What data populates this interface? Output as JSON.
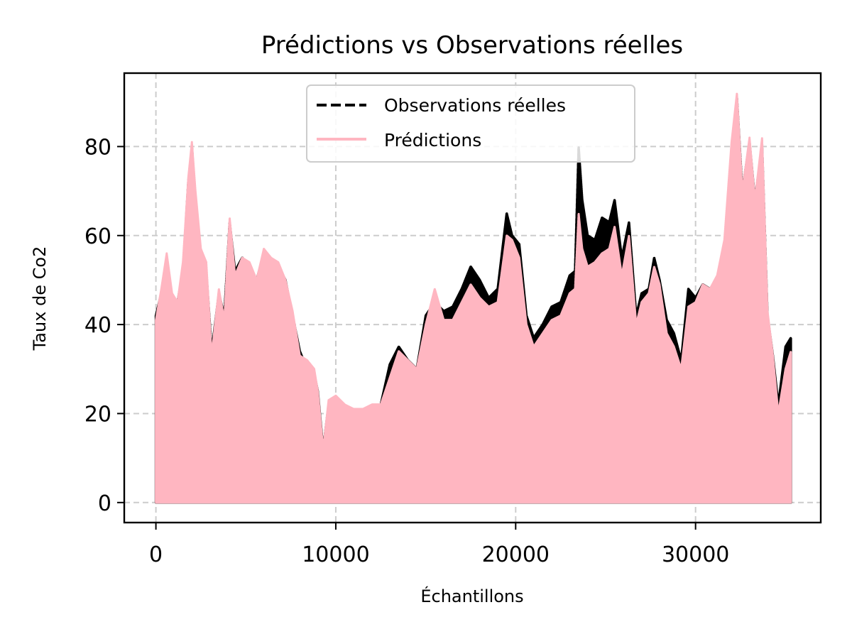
{
  "chart_data": {
    "type": "line",
    "title": "Prédictions vs Observations réelles",
    "xlabel": "Échantillons",
    "ylabel": "Taux de Co2",
    "xlim": [
      -1760,
      36960
    ],
    "ylim": [
      -4.5,
      96.5
    ],
    "xticks": [
      0,
      10000,
      20000,
      30000
    ],
    "yticks": [
      0,
      20,
      40,
      60,
      80
    ],
    "grid": true,
    "legend_position": "upper center",
    "series": [
      {
        "name": "Observations réelles",
        "color": "#000000",
        "style": "dashed",
        "envelope": [
          [
            0,
            42
          ],
          [
            300,
            47
          ],
          [
            600,
            55
          ],
          [
            900,
            46
          ],
          [
            1200,
            45
          ],
          [
            1500,
            52
          ],
          [
            1800,
            72
          ],
          [
            2000,
            80
          ],
          [
            2200,
            68
          ],
          [
            2500,
            56
          ],
          [
            2800,
            52
          ],
          [
            3100,
            34
          ],
          [
            3500,
            47
          ],
          [
            3800,
            42
          ],
          [
            4100,
            63
          ],
          [
            4400,
            52
          ],
          [
            4800,
            55
          ],
          [
            5200,
            53
          ],
          [
            5600,
            50
          ],
          [
            6000,
            56
          ],
          [
            6400,
            54
          ],
          [
            6800,
            53
          ],
          [
            7200,
            50
          ],
          [
            7600,
            42
          ],
          [
            8000,
            34
          ],
          [
            8400,
            30
          ],
          [
            8800,
            29
          ],
          [
            9000,
            25
          ],
          [
            9300,
            12
          ],
          [
            9600,
            22
          ],
          [
            10000,
            23
          ],
          [
            10500,
            21
          ],
          [
            11000,
            20
          ],
          [
            11500,
            20
          ],
          [
            12000,
            21
          ],
          [
            12500,
            22
          ],
          [
            13000,
            31
          ],
          [
            13500,
            35
          ],
          [
            14000,
            32
          ],
          [
            14500,
            30
          ],
          [
            15000,
            42
          ],
          [
            15500,
            45
          ],
          [
            16000,
            43
          ],
          [
            16500,
            44
          ],
          [
            17000,
            48
          ],
          [
            17500,
            53
          ],
          [
            18000,
            50
          ],
          [
            18500,
            46
          ],
          [
            19000,
            48
          ],
          [
            19500,
            65
          ],
          [
            19800,
            60
          ],
          [
            20200,
            58
          ],
          [
            20600,
            42
          ],
          [
            21000,
            37
          ],
          [
            21500,
            40
          ],
          [
            22000,
            44
          ],
          [
            22500,
            45
          ],
          [
            23000,
            51
          ],
          [
            23300,
            52
          ],
          [
            23500,
            80
          ],
          [
            23700,
            68
          ],
          [
            24000,
            60
          ],
          [
            24400,
            59
          ],
          [
            24800,
            64
          ],
          [
            25200,
            63
          ],
          [
            25500,
            68
          ],
          [
            25900,
            55
          ],
          [
            26300,
            63
          ],
          [
            26700,
            42
          ],
          [
            27000,
            47
          ],
          [
            27400,
            48
          ],
          [
            27700,
            55
          ],
          [
            28000,
            50
          ],
          [
            28400,
            41
          ],
          [
            28800,
            38
          ],
          [
            29200,
            32
          ],
          [
            29600,
            48
          ],
          [
            30000,
            46
          ],
          [
            30400,
            49
          ],
          [
            30800,
            48
          ],
          [
            31200,
            50
          ],
          [
            31600,
            52
          ],
          [
            32000,
            78
          ],
          [
            32300,
            91
          ],
          [
            32600,
            70
          ],
          [
            33000,
            81
          ],
          [
            33300,
            68
          ],
          [
            33700,
            80
          ],
          [
            34000,
            42
          ],
          [
            34300,
            33
          ],
          [
            34600,
            22
          ],
          [
            35000,
            35
          ],
          [
            35300,
            37
          ]
        ]
      },
      {
        "name": "Prédictions",
        "color": "#ffb6c1",
        "style": "solid",
        "envelope": [
          [
            0,
            41
          ],
          [
            300,
            48
          ],
          [
            600,
            56
          ],
          [
            900,
            47
          ],
          [
            1200,
            45
          ],
          [
            1500,
            54
          ],
          [
            1800,
            73
          ],
          [
            2000,
            81
          ],
          [
            2200,
            70
          ],
          [
            2500,
            57
          ],
          [
            2800,
            54
          ],
          [
            3100,
            33
          ],
          [
            3500,
            48
          ],
          [
            3800,
            41
          ],
          [
            4100,
            64
          ],
          [
            4400,
            51
          ],
          [
            4800,
            55
          ],
          [
            5200,
            54
          ],
          [
            5600,
            50
          ],
          [
            6000,
            57
          ],
          [
            6400,
            55
          ],
          [
            6800,
            54
          ],
          [
            7200,
            50
          ],
          [
            7600,
            43
          ],
          [
            8000,
            33
          ],
          [
            8400,
            32
          ],
          [
            8800,
            30
          ],
          [
            9000,
            25
          ],
          [
            9300,
            12
          ],
          [
            9600,
            23
          ],
          [
            10000,
            24
          ],
          [
            10500,
            22
          ],
          [
            11000,
            21
          ],
          [
            11500,
            21
          ],
          [
            12000,
            22
          ],
          [
            12500,
            22
          ],
          [
            13000,
            28
          ],
          [
            13500,
            34
          ],
          [
            14000,
            32
          ],
          [
            14500,
            30
          ],
          [
            15000,
            40
          ],
          [
            15500,
            48
          ],
          [
            16000,
            41
          ],
          [
            16500,
            41
          ],
          [
            17000,
            45
          ],
          [
            17500,
            49
          ],
          [
            18000,
            46
          ],
          [
            18500,
            44
          ],
          [
            19000,
            45
          ],
          [
            19500,
            60
          ],
          [
            19800,
            59
          ],
          [
            20200,
            55
          ],
          [
            20600,
            40
          ],
          [
            21000,
            35
          ],
          [
            21500,
            38
          ],
          [
            22000,
            41
          ],
          [
            22500,
            42
          ],
          [
            23000,
            47
          ],
          [
            23300,
            48
          ],
          [
            23500,
            65
          ],
          [
            23700,
            57
          ],
          [
            24000,
            53
          ],
          [
            24400,
            54
          ],
          [
            24800,
            56
          ],
          [
            25200,
            57
          ],
          [
            25500,
            62
          ],
          [
            25900,
            51
          ],
          [
            26300,
            60
          ],
          [
            26700,
            40
          ],
          [
            27000,
            45
          ],
          [
            27400,
            47
          ],
          [
            27700,
            53
          ],
          [
            28000,
            49
          ],
          [
            28400,
            38
          ],
          [
            28800,
            35
          ],
          [
            29200,
            30
          ],
          [
            29600,
            44
          ],
          [
            30000,
            45
          ],
          [
            30400,
            49
          ],
          [
            30800,
            48
          ],
          [
            31200,
            51
          ],
          [
            31600,
            59
          ],
          [
            32000,
            81
          ],
          [
            32300,
            92
          ],
          [
            32600,
            70
          ],
          [
            33000,
            82
          ],
          [
            33300,
            68
          ],
          [
            33700,
            82
          ],
          [
            34000,
            43
          ],
          [
            34300,
            33
          ],
          [
            34600,
            20
          ],
          [
            35000,
            30
          ],
          [
            35300,
            34
          ]
        ]
      }
    ]
  }
}
